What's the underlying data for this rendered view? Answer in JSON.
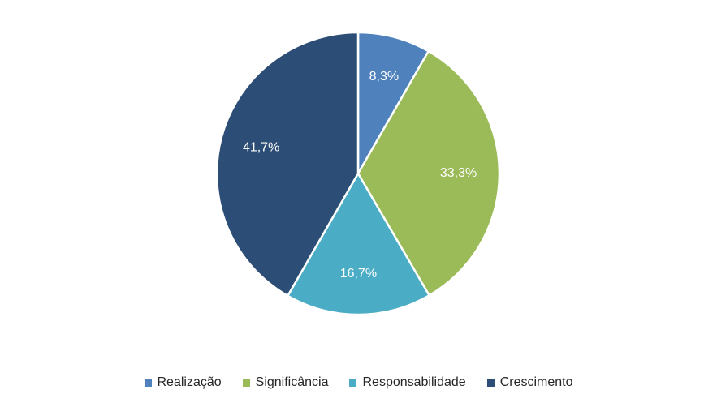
{
  "chart_data": {
    "type": "pie",
    "title": "",
    "categories": [
      "Realização",
      "Significância",
      "Responsabilidade",
      "Crescimento"
    ],
    "values": [
      8.3,
      33.3,
      16.7,
      41.7
    ],
    "labels": [
      "8,3%",
      "33,3%",
      "16,7%",
      "41,7%"
    ],
    "colors": [
      "#4f81bd",
      "#9bbb59",
      "#4bacc6",
      "#2c4d75"
    ],
    "legend_position": "bottom",
    "start_angle_deg": 0,
    "direction": "clockwise"
  }
}
